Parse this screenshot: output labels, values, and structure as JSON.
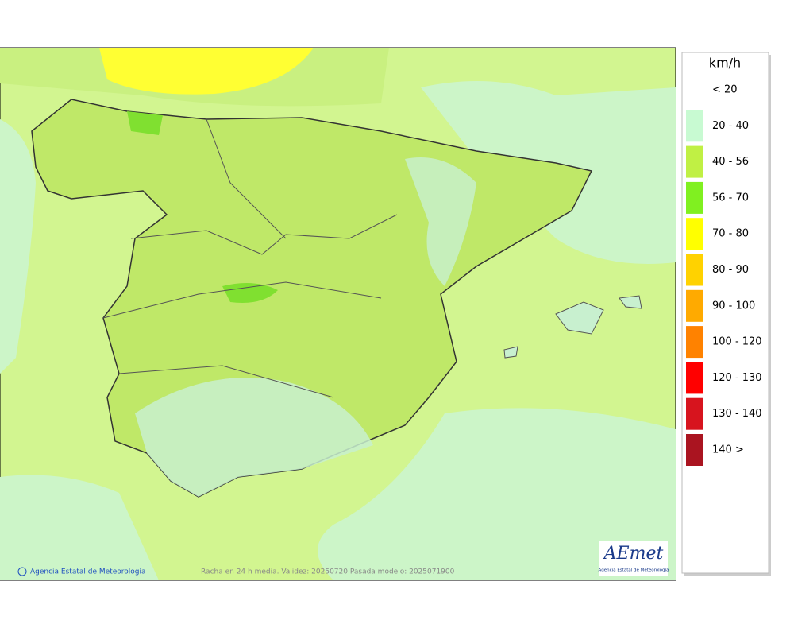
{
  "legend": {
    "title": "km/h",
    "items": [
      {
        "label": "< 20"
      },
      {
        "label": "20 - 40",
        "color": "#c8fad2"
      },
      {
        "label": "40 - 56",
        "color": "#c0f044"
      },
      {
        "label": "56 - 70",
        "color": "#80f020"
      },
      {
        "label": "70 - 80",
        "color": "#ffff00"
      },
      {
        "label": "80 - 90",
        "color": "#ffd200"
      },
      {
        "label": "90 - 100",
        "color": "#ffaa00"
      },
      {
        "label": "100 - 120",
        "color": "#ff8200"
      },
      {
        "label": "120 - 130",
        "color": "#ff0000"
      },
      {
        "label": "130 - 140",
        "color": "#d7141e"
      },
      {
        "label": "140 >",
        "color": "#aa1420"
      }
    ]
  },
  "footer": {
    "copyright": "Agencia Estatal de Meteorología",
    "caption": "Racha en 24 h media. Validez: 20250720 Pasada modelo: 2025071900"
  },
  "logo": {
    "name": "AEmet",
    "subtitle": "Agencia Estatal de Meteorología"
  }
}
